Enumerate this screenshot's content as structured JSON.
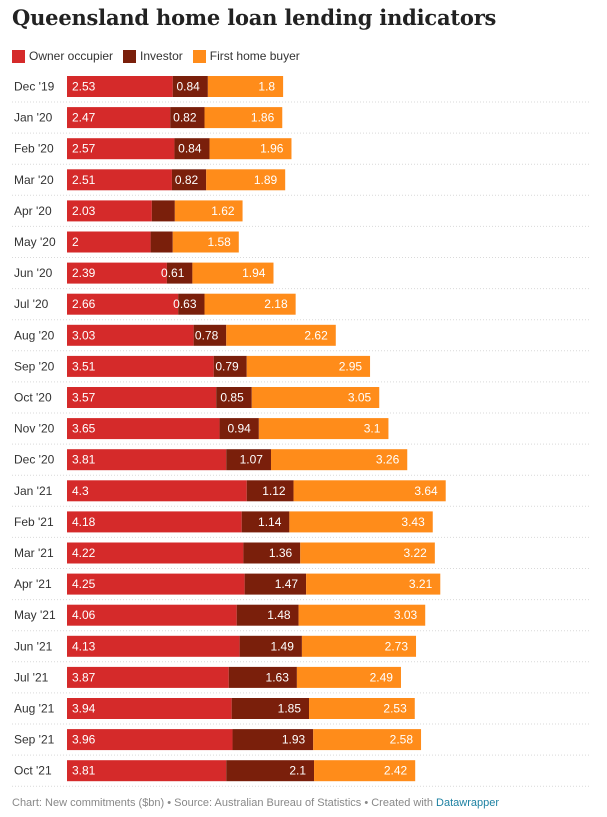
{
  "title": "Queensland home loan lending indicators",
  "footer": {
    "text": "Chart: New commitments ($bn) • Source: Australian Bureau of Statistics • Created with ",
    "link": "Datawrapper"
  },
  "colors": {
    "owner": "#d52a2a",
    "investor": "#7a1f0b",
    "first": "#ff8c1a"
  },
  "chart_data": {
    "type": "bar",
    "orientation": "horizontal",
    "stacked": true,
    "categories": [
      "Dec '19",
      "Jan '20",
      "Feb '20",
      "Mar '20",
      "Apr '20",
      "May '20",
      "Jun '20",
      "Jul '20",
      "Aug '20",
      "Sep '20",
      "Oct '20",
      "Nov '20",
      "Dec '20",
      "Jan '21",
      "Feb '21",
      "Mar '21",
      "Apr '21",
      "May '21",
      "Jun '21",
      "Jul '21",
      "Aug '21",
      "Sep '21",
      "Oct '21"
    ],
    "series": [
      {
        "name": "Owner occupier",
        "values": [
          2.53,
          2.47,
          2.57,
          2.51,
          2.03,
          2,
          2.39,
          2.66,
          3.03,
          3.51,
          3.57,
          3.65,
          3.81,
          4.3,
          4.18,
          4.22,
          4.25,
          4.06,
          4.13,
          3.87,
          3.94,
          3.96,
          3.81
        ]
      },
      {
        "name": "Investor",
        "values": [
          0.84,
          0.82,
          0.84,
          0.82,
          0.55,
          0.53,
          0.61,
          0.63,
          0.78,
          0.79,
          0.85,
          0.94,
          1.07,
          1.12,
          1.14,
          1.36,
          1.47,
          1.48,
          1.49,
          1.63,
          1.85,
          1.93,
          2.1
        ]
      },
      {
        "name": "First home buyer",
        "values": [
          1.8,
          1.86,
          1.96,
          1.89,
          1.62,
          1.58,
          1.94,
          2.18,
          2.62,
          2.95,
          3.05,
          3.1,
          3.26,
          3.64,
          3.43,
          3.22,
          3.21,
          3.03,
          2.73,
          2.49,
          2.53,
          2.58,
          2.42
        ]
      }
    ],
    "hidden_labels": [
      [
        4,
        1
      ],
      [
        5,
        1
      ]
    ],
    "legend_position": "top-left",
    "grid": false
  }
}
